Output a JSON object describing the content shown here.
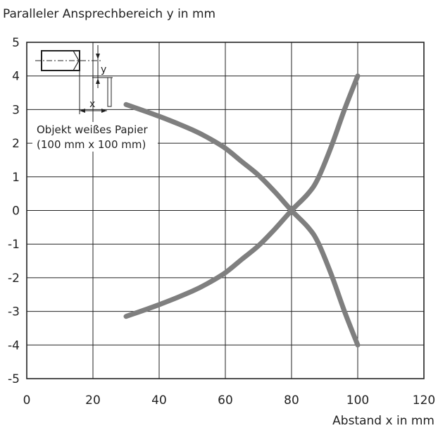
{
  "chart_data": {
    "type": "line",
    "title": "",
    "ylabel": "Paralleler Ansprechbereich y in mm",
    "xlabel": "Abstand x in mm",
    "xlim": [
      0,
      120
    ],
    "ylim": [
      -5,
      5
    ],
    "x_ticks": [
      "0",
      "20",
      "40",
      "60",
      "80",
      "100",
      "120"
    ],
    "y_ticks": [
      "5",
      "4",
      "3",
      "2",
      "1",
      "0",
      "-1",
      "-2",
      "-3",
      "-4",
      "-5"
    ],
    "grid": true,
    "line_color": "#7f7f7f",
    "series": [
      {
        "points": [
          [
            30,
            3.15
          ],
          [
            40,
            2.8
          ],
          [
            50,
            2.4
          ],
          [
            55,
            2.15
          ],
          [
            60,
            1.85
          ],
          [
            65,
            1.45
          ],
          [
            70,
            1.05
          ],
          [
            75,
            0.55
          ],
          [
            80,
            0.0
          ],
          [
            85,
            -0.5
          ],
          [
            88,
            -0.95
          ],
          [
            92,
            -1.9
          ],
          [
            96,
            -3.0
          ],
          [
            100,
            -4.0
          ]
        ]
      },
      {
        "points": [
          [
            30,
            -3.15
          ],
          [
            40,
            -2.8
          ],
          [
            50,
            -2.4
          ],
          [
            55,
            -2.15
          ],
          [
            60,
            -1.85
          ],
          [
            65,
            -1.45
          ],
          [
            70,
            -1.05
          ],
          [
            75,
            -0.55
          ],
          [
            80,
            0.0
          ],
          [
            85,
            0.5
          ],
          [
            88,
            0.95
          ],
          [
            92,
            1.9
          ],
          [
            96,
            3.0
          ],
          [
            100,
            4.0
          ]
        ]
      }
    ],
    "annotation": {
      "line1": "Objekt weißes Papier",
      "line2": "(100 mm x 100 mm)",
      "x_symbol": "x",
      "y_symbol": "y"
    }
  }
}
